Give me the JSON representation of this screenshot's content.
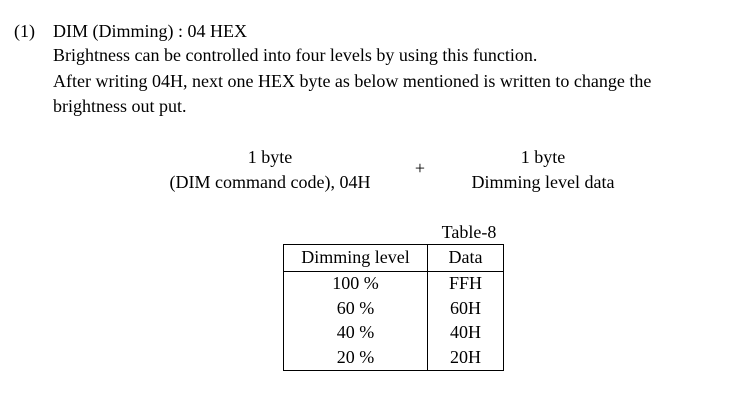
{
  "section": {
    "number": "(1)",
    "heading": "DIM (Dimming) : 04 HEX",
    "description_lines": [
      "Brightness can be controlled into four levels by using this function.",
      "After writing 04H, next one HEX byte as below mentioned is written to change the",
      "brightness out put."
    ]
  },
  "command_diagram": {
    "left": {
      "size": "1 byte",
      "description": "(DIM command code), 04H"
    },
    "operator": "+",
    "right": {
      "size": "1 byte",
      "description": "Dimming level data"
    }
  },
  "table": {
    "caption": "Table-8",
    "headers": [
      "Dimming level",
      "Data"
    ],
    "rows": [
      [
        "100 %",
        "FFH"
      ],
      [
        "60 %",
        "60H"
      ],
      [
        "40 %",
        "40H"
      ],
      [
        "20 %",
        "20H"
      ]
    ]
  }
}
